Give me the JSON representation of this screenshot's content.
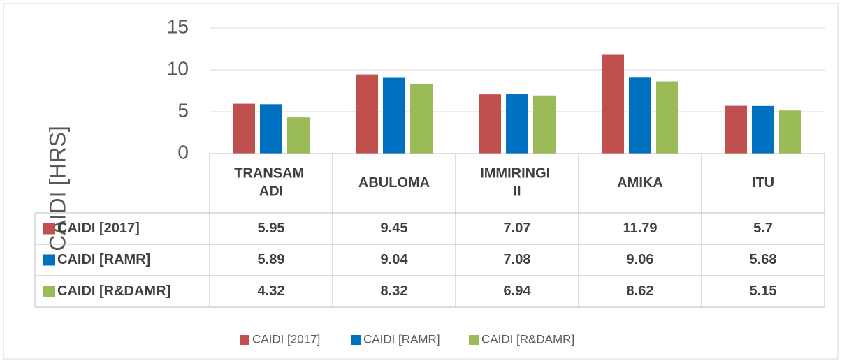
{
  "chart_data": {
    "type": "bar",
    "y_label": "CAIDI [HRS]",
    "categories": [
      "TRANSAM ADI",
      "ABULOMA",
      "IMMIRINGI II",
      "AMIKA",
      "ITU"
    ],
    "series": [
      {
        "name": "CAIDI [2017]",
        "color": "#c0504d",
        "values": [
          5.95,
          9.45,
          7.07,
          11.79,
          5.7
        ]
      },
      {
        "name": "CAIDI [RAMR]",
        "color": "#0070c0",
        "values": [
          5.89,
          9.04,
          7.08,
          9.06,
          5.68
        ]
      },
      {
        "name": "CAIDI [R&DAMR]",
        "color": "#9bbb59",
        "values": [
          4.32,
          8.32,
          6.94,
          8.62,
          5.15
        ]
      }
    ],
    "ylim": [
      0,
      15
    ],
    "yticks": [
      0,
      5,
      10,
      15
    ],
    "grid": true,
    "legend": "bottom",
    "data_table": true
  }
}
